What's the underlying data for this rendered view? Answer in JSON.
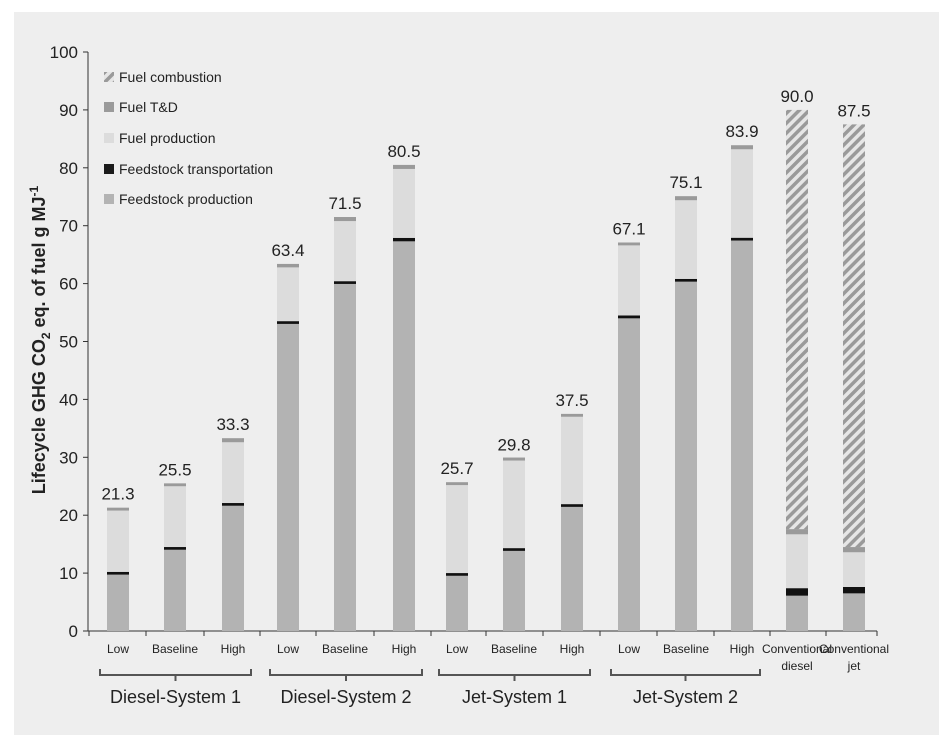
{
  "chart_data": {
    "type": "bar",
    "stacked": true,
    "ylabel": "Lifecycle GHG CO2 eq. of fuel g MJ-1",
    "ylabel_parts": {
      "pre": "Lifecycle GHG CO",
      "sub": "2",
      "mid": " eq. of fuel g MJ",
      "sup": "-1"
    },
    "ylim": [
      0,
      100
    ],
    "yticks": [
      "0",
      "10",
      "20",
      "30",
      "40",
      "50",
      "60",
      "70",
      "80",
      "90",
      "100"
    ],
    "grid": false,
    "legend_placement": "top-left",
    "legend": [
      {
        "name": "Fuel combustion",
        "color": "#bdbdbd",
        "pattern": "hatched"
      },
      {
        "name": "Fuel T&D",
        "color": "#9a9a9a"
      },
      {
        "name": "Fuel production",
        "color": "#dcdcdc"
      },
      {
        "name": "Feedstock transportation",
        "color": "#1a1a1a"
      },
      {
        "name": "Feedstock production",
        "color": "#b3b3b3"
      }
    ],
    "groups": [
      {
        "name": "Diesel-System 1",
        "bars": [
          0,
          1,
          2
        ]
      },
      {
        "name": "Diesel-System 2",
        "bars": [
          3,
          4,
          5
        ]
      },
      {
        "name": "Jet-System 1",
        "bars": [
          6,
          7,
          8
        ]
      },
      {
        "name": "Jet-System 2",
        "bars": [
          9,
          10,
          11
        ]
      }
    ],
    "bars": [
      {
        "label": [
          "Low"
        ],
        "total": "21.3",
        "feedstock_production": 9.8,
        "feedstock_transportation": 0.4,
        "fuel_production": 10.6,
        "fuel_td": 0.5,
        "fuel_combustion": 0
      },
      {
        "label": [
          "Baseline"
        ],
        "total": "25.5",
        "feedstock_production": 14.1,
        "feedstock_transportation": 0.4,
        "fuel_production": 10.5,
        "fuel_td": 0.5,
        "fuel_combustion": 0
      },
      {
        "label": [
          "High"
        ],
        "total": "33.3",
        "feedstock_production": 21.7,
        "feedstock_transportation": 0.4,
        "fuel_production": 10.5,
        "fuel_td": 0.7,
        "fuel_combustion": 0
      },
      {
        "label": [
          "Low"
        ],
        "total": "63.4",
        "feedstock_production": 53.1,
        "feedstock_transportation": 0.4,
        "fuel_production": 9.3,
        "fuel_td": 0.6,
        "fuel_combustion": 0
      },
      {
        "label": [
          "Baseline"
        ],
        "total": "71.5",
        "feedstock_production": 60.0,
        "feedstock_transportation": 0.4,
        "fuel_production": 10.4,
        "fuel_td": 0.7,
        "fuel_combustion": 0
      },
      {
        "label": [
          "High"
        ],
        "total": "80.5",
        "feedstock_production": 67.3,
        "feedstock_transportation": 0.6,
        "fuel_production": 11.9,
        "fuel_td": 0.7,
        "fuel_combustion": 0
      },
      {
        "label": [
          "Low"
        ],
        "total": "25.7",
        "feedstock_production": 9.6,
        "feedstock_transportation": 0.4,
        "fuel_production": 15.2,
        "fuel_td": 0.5,
        "fuel_combustion": 0
      },
      {
        "label": [
          "Baseline"
        ],
        "total": "29.8",
        "feedstock_production": 13.9,
        "feedstock_transportation": 0.4,
        "fuel_production": 15.3,
        "fuel_td": 0.2,
        "fuel_combustion": 0
      },
      {
        "label": [
          "High"
        ],
        "total": "37.5",
        "feedstock_production": 21.5,
        "feedstock_transportation": 0.4,
        "fuel_production": 15.1,
        "fuel_td": 0.5,
        "fuel_combustion": 0
      },
      {
        "label": [
          "Low"
        ],
        "total": "67.1",
        "feedstock_production": 54.0,
        "feedstock_transportation": 0.5,
        "fuel_production": 12.1,
        "fuel_td": 0.5,
        "fuel_combustion": 0
      },
      {
        "label": [
          "Baseline"
        ],
        "total": "75.1",
        "feedstock_production": 60.4,
        "feedstock_transportation": 0.4,
        "fuel_production": 13.6,
        "fuel_td": 0.7,
        "fuel_combustion": 0
      },
      {
        "label": [
          "High"
        ],
        "total": "83.9",
        "feedstock_production": 67.5,
        "feedstock_transportation": 0.4,
        "fuel_production": 15.3,
        "fuel_td": 0.7,
        "fuel_combustion": 0
      },
      {
        "label": [
          "Conventional",
          "diesel"
        ],
        "total": "90.0",
        "feedstock_production": 6.1,
        "feedstock_transportation": 1.3,
        "fuel_production": 9.3,
        "fuel_td": 0.9,
        "fuel_combustion": 72.4
      },
      {
        "label": [
          "Conventional",
          "jet"
        ],
        "total": "87.5",
        "feedstock_production": 6.5,
        "feedstock_transportation": 1.1,
        "fuel_production": 6.0,
        "fuel_td": 0.9,
        "fuel_combustion": 73.0
      }
    ]
  }
}
